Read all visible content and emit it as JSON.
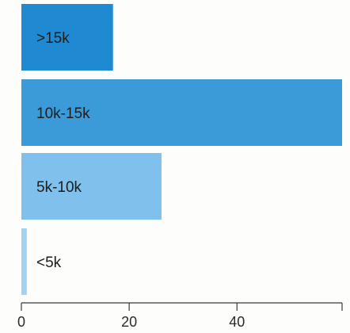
{
  "chart_data": {
    "type": "bar",
    "orientation": "horizontal",
    "categories": [
      ">15k",
      "10k-15k",
      "5k-10k",
      "<5k"
    ],
    "values": [
      17,
      59.5,
      26,
      1
    ],
    "colors": [
      "#1f8ad2",
      "#3a9bd8",
      "#7fc0ec",
      "#9fd3f3"
    ],
    "xlim": [
      0,
      59.5
    ],
    "xticks": [
      0,
      20,
      40
    ],
    "xtick_labels": [
      "0",
      "20",
      "40"
    ],
    "grid": false,
    "legend": "none",
    "title": "",
    "xlabel": "",
    "ylabel": ""
  }
}
